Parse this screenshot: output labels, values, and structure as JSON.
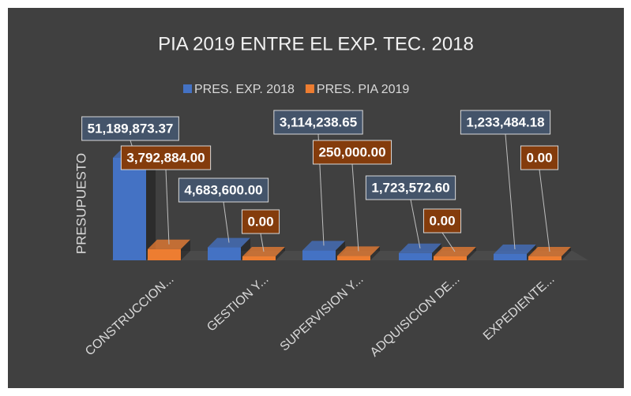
{
  "chart_data": {
    "type": "bar3d",
    "title": "PIA 2019 ENTRE EL EXP. TEC. 2018",
    "y_label": "PRESUPUESTO",
    "categories": [
      "CONSTRUCCION...",
      "GESTION Y...",
      "SUPERVISION Y...",
      "ADQUISICION DE...",
      "EXPEDIENTE..."
    ],
    "series": [
      {
        "name": "PRES. EXP. 2018",
        "color": "#4472c4",
        "values": [
          51189873.37,
          4683600.0,
          3114238.65,
          1723572.6,
          1233484.18
        ],
        "value_labels": [
          "51,189,873.37",
          "4,683,600.00",
          "3,114,238.65",
          "1,723,572.60",
          "1,233,484.18"
        ]
      },
      {
        "name": "PRES. PIA 2019",
        "color": "#ed7d31",
        "values": [
          3792884.0,
          0,
          250000.0,
          0,
          0
        ],
        "value_labels": [
          "3,792,884.00",
          "0.00",
          "250,000.00",
          "0.00",
          "0.00"
        ]
      }
    ],
    "legend": "top"
  }
}
